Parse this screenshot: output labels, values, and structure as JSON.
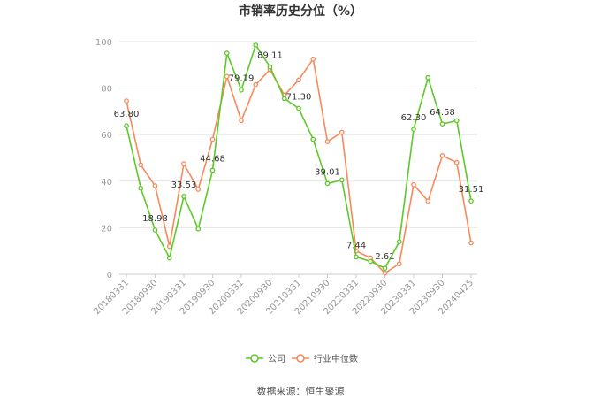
{
  "chart_data": {
    "type": "line",
    "title": "市销率历史分位（%）",
    "ylim": [
      0,
      100
    ],
    "yticks": [
      0,
      20,
      40,
      60,
      80,
      100
    ],
    "grid": true,
    "legend_position": "bottom",
    "x": [
      "20180331",
      "20180630",
      "20180930",
      "20181231",
      "20190331",
      "20190630",
      "20190930",
      "20191231",
      "20200331",
      "20200630",
      "20200930",
      "20201231",
      "20210331",
      "20210630",
      "20210930",
      "20211231",
      "20220331",
      "20220630",
      "20220930",
      "20221231",
      "20230331",
      "20230630",
      "20230930",
      "20231231",
      "20240425"
    ],
    "xtick_labels": [
      "20180331",
      "20180930",
      "20190331",
      "20190930",
      "20200331",
      "20200930",
      "20210331",
      "20210930",
      "20220331",
      "20220930",
      "20230331",
      "20230930",
      "20240425"
    ],
    "series": [
      {
        "name": "公司",
        "color": "#5cc926",
        "values": [
          63.8,
          37,
          18.98,
          7,
          33.53,
          19.5,
          44.68,
          95,
          79.19,
          98.5,
          89.11,
          75.5,
          71.3,
          58,
          39.01,
          40.5,
          7.44,
          5.5,
          2.61,
          14,
          62.3,
          84.5,
          64.58,
          66,
          31.51
        ]
      },
      {
        "name": "行业中位数",
        "color": "#f7895a",
        "values": [
          74.5,
          47,
          38,
          12,
          47.5,
          36.5,
          58,
          85,
          66,
          81.5,
          88,
          77,
          83.5,
          92.5,
          57,
          61,
          10,
          7,
          0.5,
          4.5,
          38.5,
          31.5,
          51,
          48,
          13.5
        ]
      }
    ],
    "data_labels": [
      {
        "series": 0,
        "index": 0,
        "text": "63.80"
      },
      {
        "series": 0,
        "index": 2,
        "text": "18.98"
      },
      {
        "series": 0,
        "index": 4,
        "text": "33.53"
      },
      {
        "series": 0,
        "index": 6,
        "text": "44.68"
      },
      {
        "series": 0,
        "index": 8,
        "text": "79.19"
      },
      {
        "series": 0,
        "index": 10,
        "text": "89.11"
      },
      {
        "series": 0,
        "index": 12,
        "text": "71.30"
      },
      {
        "series": 0,
        "index": 14,
        "text": "39.01"
      },
      {
        "series": 0,
        "index": 16,
        "text": "7.44"
      },
      {
        "series": 0,
        "index": 18,
        "text": "2.61"
      },
      {
        "series": 0,
        "index": 20,
        "text": "62.30"
      },
      {
        "series": 0,
        "index": 22,
        "text": "64.58"
      },
      {
        "series": 0,
        "index": 24,
        "text": "31.51"
      }
    ]
  },
  "footer": {
    "source": "数据来源：恒生聚源"
  }
}
